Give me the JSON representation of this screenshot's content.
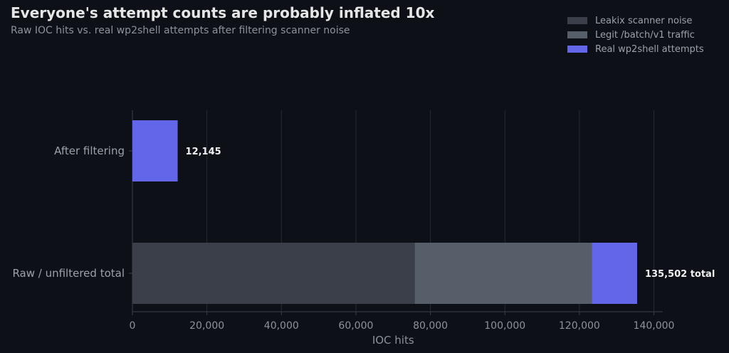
{
  "title": "Everyone's attempt counts are probably inflated 10x",
  "subtitle": "Raw IOC hits vs. real wp2shell attempts after filtering scanner noise",
  "legend": [
    {
      "label": "Leakix scanner noise",
      "color": "#3b3f4a"
    },
    {
      "label": "Legit /batch/v1 traffic",
      "color": "#565e69"
    },
    {
      "label": "Real wp2shell attempts",
      "color": "#6366e8"
    }
  ],
  "chart_data": {
    "type": "bar",
    "orientation": "horizontal",
    "stacked": true,
    "title": "Everyone's attempt counts are probably inflated 10x",
    "subtitle": "Raw IOC hits vs. real wp2shell attempts after filtering scanner noise",
    "xlabel": "IOC hits",
    "ylabel": "",
    "xlim": [
      0,
      142000
    ],
    "xticks": [
      0,
      20000,
      40000,
      60000,
      80000,
      100000,
      120000,
      140000
    ],
    "xtick_labels": [
      "0",
      "20,000",
      "40,000",
      "60,000",
      "80,000",
      "100,000",
      "120,000",
      "140,000"
    ],
    "grid": "vertical",
    "legend_position": "top-right",
    "categories": [
      "After filtering",
      "Raw / unfiltered total"
    ],
    "series": [
      {
        "name": "Leakix scanner noise",
        "color": "#3b3f4a",
        "values": [
          0,
          75800
        ]
      },
      {
        "name": "Legit /batch/v1 traffic",
        "color": "#565e69",
        "values": [
          0,
          47557
        ]
      },
      {
        "name": "Real wp2shell attempts",
        "color": "#6366e8",
        "values": [
          12145,
          12145
        ]
      }
    ],
    "totals": [
      12145,
      135502
    ],
    "data_labels": [
      "12,145",
      "135,502 total"
    ]
  }
}
